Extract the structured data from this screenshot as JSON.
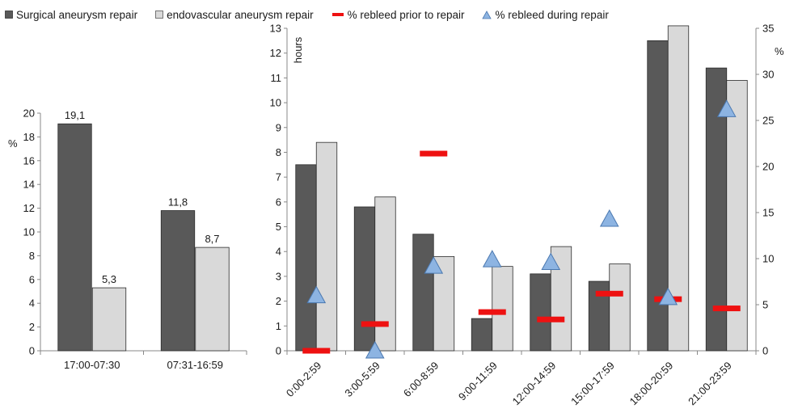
{
  "colors": {
    "surgical": "#595959",
    "endovascular": "#d9d9d9",
    "prior": "#ee1111",
    "during": "#8db4e2",
    "axis": "#888888"
  },
  "legend": {
    "surgical": "Surgical aneurysm repair",
    "endovascular": "endovascular aneurysm repair",
    "prior": "% rebleed prior to repair",
    "during": "% rebleed during repair"
  },
  "chart_data": [
    {
      "type": "bar",
      "ylabel": "%",
      "ylim": [
        0,
        20
      ],
      "yticks": [
        0,
        2,
        4,
        6,
        8,
        10,
        12,
        14,
        16,
        18,
        20
      ],
      "categories": [
        "17:00-07:30",
        "07:31-16:59"
      ],
      "series": [
        {
          "name": "Surgical aneurysm repair",
          "values": [
            19.1,
            11.8
          ]
        },
        {
          "name": "endovascular aneurysm repair",
          "values": [
            5.3,
            8.7
          ]
        }
      ],
      "data_labels": [
        [
          "19,1",
          "11,8"
        ],
        [
          "5,3",
          "8,7"
        ]
      ]
    },
    {
      "type": "bar",
      "ylabel": "hours",
      "ylim": [
        0,
        13
      ],
      "yticks": [
        0,
        1,
        2,
        3,
        4,
        5,
        6,
        7,
        8,
        9,
        10,
        11,
        12,
        13
      ],
      "y2label": "%",
      "y2lim": [
        0,
        35
      ],
      "y2ticks": [
        0,
        5,
        10,
        15,
        20,
        25,
        30,
        35
      ],
      "categories": [
        "0:00-2:59",
        "3:00-5:59",
        "6:00-8:59",
        "9:00-11:59",
        "12:00-14:59",
        "15:00-17:59",
        "18:00-20:59",
        "21:00-23:59"
      ],
      "series": [
        {
          "name": "Surgical aneurysm repair",
          "axis": "left",
          "values": [
            7.5,
            5.8,
            4.7,
            1.3,
            3.1,
            2.8,
            12.5,
            11.4
          ]
        },
        {
          "name": "endovascular aneurysm repair",
          "axis": "left",
          "values": [
            8.4,
            6.2,
            3.8,
            3.4,
            4.2,
            3.5,
            13.1,
            10.9
          ]
        },
        {
          "name": "% rebleed prior to repair",
          "axis": "right",
          "marker": "dash",
          "values": [
            0,
            2.9,
            21.4,
            4.2,
            3.4,
            6.2,
            5.6,
            4.6
          ]
        },
        {
          "name": "% rebleed during repair",
          "axis": "right",
          "marker": "triangle",
          "values": [
            6.0,
            0,
            9.2,
            9.9,
            9.6,
            14.3,
            5.8,
            26.2
          ]
        }
      ]
    }
  ]
}
